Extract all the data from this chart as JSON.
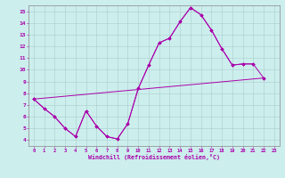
{
  "xlabel": "Windchill (Refroidissement éolien,°C)",
  "bg_color": "#cceeed",
  "grid_color": "#aacccc",
  "line_color": "#aa00aa",
  "xlim": [
    -0.5,
    23.5
  ],
  "ylim": [
    3.5,
    15.5
  ],
  "xticks": [
    0,
    1,
    2,
    3,
    4,
    5,
    6,
    7,
    8,
    9,
    10,
    11,
    12,
    13,
    14,
    15,
    16,
    17,
    18,
    19,
    20,
    21,
    22,
    23
  ],
  "yticks": [
    4,
    5,
    6,
    7,
    8,
    9,
    10,
    11,
    12,
    13,
    14,
    15
  ],
  "s1": {
    "x": [
      0,
      22
    ],
    "y": [
      7.5,
      9.3
    ]
  },
  "s2": {
    "x": [
      0,
      1,
      2,
      3,
      4,
      5,
      6,
      7,
      8,
      9,
      10,
      11,
      12,
      13,
      14,
      15,
      16,
      17,
      18,
      19,
      20,
      21
    ],
    "y": [
      7.5,
      6.7,
      6.0,
      5.0,
      4.3,
      6.5,
      5.2,
      4.3,
      4.1,
      5.4,
      8.4,
      10.4,
      12.3,
      12.7,
      14.1,
      15.3,
      14.7,
      13.4,
      11.8,
      10.4,
      10.5,
      10.5
    ]
  },
  "s3": {
    "x": [
      0,
      1,
      2,
      3,
      4,
      5,
      6,
      7,
      8,
      9,
      10,
      11,
      12,
      13,
      14,
      15,
      16,
      17,
      18,
      19,
      20,
      21,
      22
    ],
    "y": [
      7.5,
      6.7,
      6.0,
      5.0,
      4.3,
      6.5,
      5.2,
      4.3,
      4.1,
      5.4,
      8.4,
      10.4,
      12.3,
      12.7,
      14.1,
      15.3,
      14.7,
      13.4,
      11.8,
      10.4,
      10.5,
      10.5,
      9.3
    ]
  }
}
